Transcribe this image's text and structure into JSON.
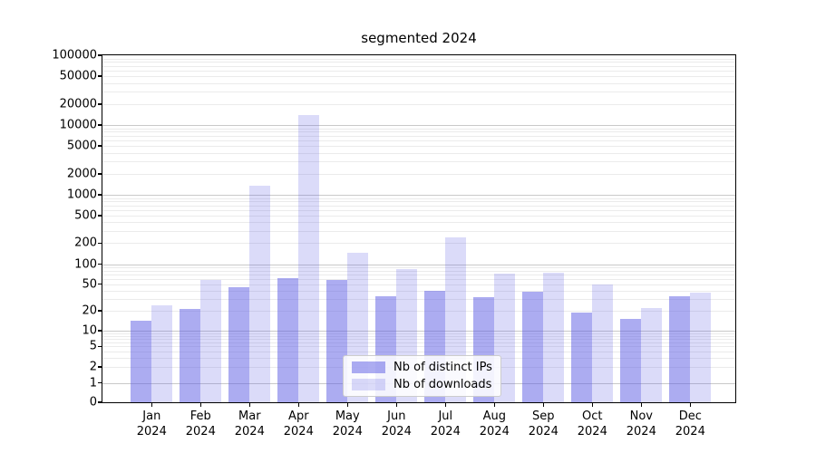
{
  "figure": {
    "title": "segmented 2024"
  },
  "chart_data": {
    "type": "bar",
    "title": "segmented 2024",
    "xlabel": "",
    "ylabel": "",
    "yscale": "symlog",
    "ylim": [
      0,
      100000
    ],
    "grid": "horizontal, major and minor, log decades",
    "legend_position": "lower center",
    "categories": [
      "Jan 2024",
      "Feb 2024",
      "Mar 2024",
      "Apr 2024",
      "May 2024",
      "Jun 2024",
      "Jul 2024",
      "Aug 2024",
      "Sep 2024",
      "Oct 2024",
      "Nov 2024",
      "Dec 2024"
    ],
    "series": [
      {
        "name": "Nb of distinct IPs",
        "color": "rgba(90,90,228,0.5)",
        "legend_swatch": "#aaaaf2",
        "values": [
          14,
          21,
          45,
          61,
          58,
          33,
          40,
          32,
          39,
          19,
          15,
          33
        ]
      },
      {
        "name": "Nb of downloads",
        "color": "rgba(90,90,228,0.22)",
        "legend_swatch": "#dadaf9",
        "values": [
          24,
          57,
          1350,
          14000,
          145,
          85,
          240,
          72,
          75,
          49,
          22,
          37
        ]
      }
    ],
    "ytick_values": [
      100000,
      50000,
      20000,
      10000,
      5000,
      2000,
      1000,
      500,
      200,
      100,
      50,
      20,
      10,
      5,
      2,
      1,
      0
    ],
    "colors": {
      "bar_dark": "#aaaaf2",
      "bar_light": "#dadaf9",
      "grid_major": "#c9c9c9",
      "grid_minor": "#ebebeb",
      "axis": "#000000"
    }
  }
}
